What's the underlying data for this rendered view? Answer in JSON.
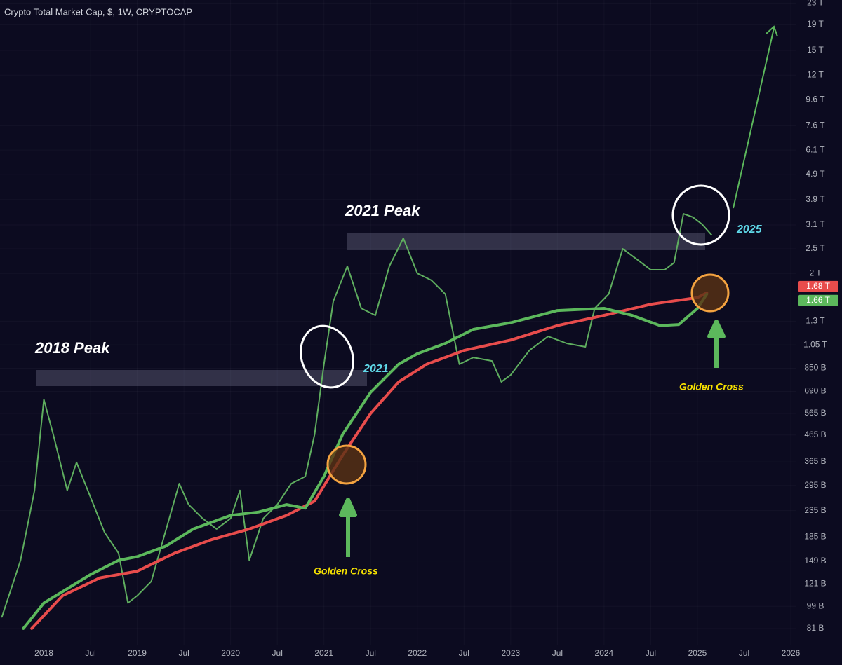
{
  "chart_data": {
    "type": "line",
    "title": "Crypto Total Market Cap, $, 1W, CRYPTOCAP",
    "log_scale": true,
    "xlim": [
      2017.53,
      2026.06
    ],
    "xticks": [
      2018,
      {
        "value": 2018.5,
        "label": "Jul"
      },
      2019,
      {
        "value": 2019.5,
        "label": "Jul"
      },
      2020,
      {
        "value": 2020.5,
        "label": "Jul"
      },
      2021,
      {
        "value": 2021.5,
        "label": "Jul"
      },
      2022,
      {
        "value": 2022.5,
        "label": "Jul"
      },
      2023,
      {
        "value": 2023.5,
        "label": "Jul"
      },
      2024,
      {
        "value": 2024.5,
        "label": "Jul"
      },
      2025,
      {
        "value": 2025.5,
        "label": "Jul"
      },
      2026
    ],
    "ylim": [
      70,
      23650
    ],
    "yticks": [
      {
        "value": 81,
        "label": "81 B"
      },
      {
        "value": 99,
        "label": "99 B"
      },
      {
        "value": 121,
        "label": "121 B"
      },
      {
        "value": 149,
        "label": "149 B"
      },
      {
        "value": 185,
        "label": "185 B"
      },
      {
        "value": 235,
        "label": "235 B"
      },
      {
        "value": 295,
        "label": "295 B"
      },
      {
        "value": 365,
        "label": "365 B"
      },
      {
        "value": 465,
        "label": "465 B"
      },
      {
        "value": 565,
        "label": "565 B"
      },
      {
        "value": 690,
        "label": "690 B"
      },
      {
        "value": 850,
        "label": "850 B"
      },
      {
        "value": 1050,
        "label": "1.05 T"
      },
      {
        "value": 1300,
        "label": "1.3 T"
      },
      {
        "value": 2000,
        "label": "2 T"
      },
      {
        "value": 2500,
        "label": "2.5 T"
      },
      {
        "value": 3100,
        "label": "3.1 T"
      },
      {
        "value": 3900,
        "label": "3.9 T"
      },
      {
        "value": 4900,
        "label": "4.9 T"
      },
      {
        "value": 6100,
        "label": "6.1 T"
      },
      {
        "value": 7600,
        "label": "7.6 T"
      },
      {
        "value": 9600,
        "label": "9.6 T"
      },
      {
        "value": 12000,
        "label": "12 T"
      },
      {
        "value": 15000,
        "label": "15 T"
      },
      {
        "value": 19000,
        "label": "19 T"
      },
      {
        "value": 23000,
        "label": "23 T"
      }
    ],
    "series": [
      {
        "color": "#5fae5f",
        "x": [
          2017.55,
          2017.75,
          2017.9,
          2018.0,
          2018.1,
          2018.25,
          2018.35,
          2018.5,
          2018.65,
          2018.8,
          2018.9,
          2019.0,
          2019.15,
          2019.3,
          2019.45,
          2019.55,
          2019.7,
          2019.85,
          2020.0,
          2020.1,
          2020.2,
          2020.35,
          2020.5,
          2020.65,
          2020.8,
          2020.9,
          2021.0,
          2021.1,
          2021.25,
          2021.4,
          2021.55,
          2021.7,
          2021.85,
          2022.0,
          2022.15,
          2022.3,
          2022.45,
          2022.6,
          2022.8,
          2022.9,
          2023.0,
          2023.2,
          2023.4,
          2023.6,
          2023.8,
          2023.9,
          2024.05,
          2024.2,
          2024.35,
          2024.5,
          2024.65,
          2024.75,
          2024.85,
          2024.95,
          2025.05,
          2025.15
        ],
        "values": [
          90,
          150,
          282,
          641,
          468,
          282,
          363,
          265,
          193,
          160,
          102,
          109,
          124,
          193,
          300,
          248,
          219,
          199,
          219,
          282,
          150,
          219,
          248,
          300,
          320,
          468,
          881,
          1557,
          2136,
          1460,
          1371,
          2136,
          2749,
          2003,
          1882,
          1660,
          881,
          937,
          908,
          752,
          800,
          998,
          1133,
          1064,
          1031,
          1460,
          1660,
          2500,
          2275,
          2068,
          2068,
          2205,
          3430,
          3328,
          3120,
          2840
        ]
      },
      {
        "color": "#e84c4c",
        "x": [
          2017.87,
          2018.2,
          2018.6,
          2019.0,
          2019.4,
          2019.8,
          2020.2,
          2020.6,
          2020.9,
          2021.2,
          2021.5,
          2021.8,
          2022.1,
          2022.5,
          2023.0,
          2023.5,
          2024.0,
          2024.5,
          2025.0,
          2025.1
        ],
        "values": [
          81,
          109,
          128,
          136,
          160,
          181,
          199,
          225,
          256,
          387,
          565,
          752,
          881,
          998,
          1096,
          1250,
          1371,
          1515,
          1610,
          1680
        ],
        "last_label": "1.68 T"
      },
      {
        "color": "#5cb85c",
        "x": [
          2017.78,
          2018.0,
          2018.5,
          2018.8,
          2019.0,
          2019.3,
          2019.6,
          2020.0,
          2020.3,
          2020.6,
          2020.8,
          2021.0,
          2021.2,
          2021.5,
          2021.8,
          2022.0,
          2022.3,
          2022.6,
          2023.0,
          2023.5,
          2024.0,
          2024.3,
          2024.6,
          2024.8,
          2025.0,
          2025.1
        ],
        "values": [
          81,
          102,
          132,
          150,
          155,
          170,
          199,
          225,
          232,
          248,
          240,
          320,
          468,
          684,
          881,
          969,
          1064,
          1208,
          1283,
          1432,
          1460,
          1371,
          1250,
          1262,
          1460,
          1660
        ],
        "last_label": "1.66 T"
      }
    ],
    "annotations": [
      "2018 Peak",
      "2021 Peak",
      "2021",
      "2025",
      "Golden Cross",
      "Golden Cross"
    ]
  }
}
